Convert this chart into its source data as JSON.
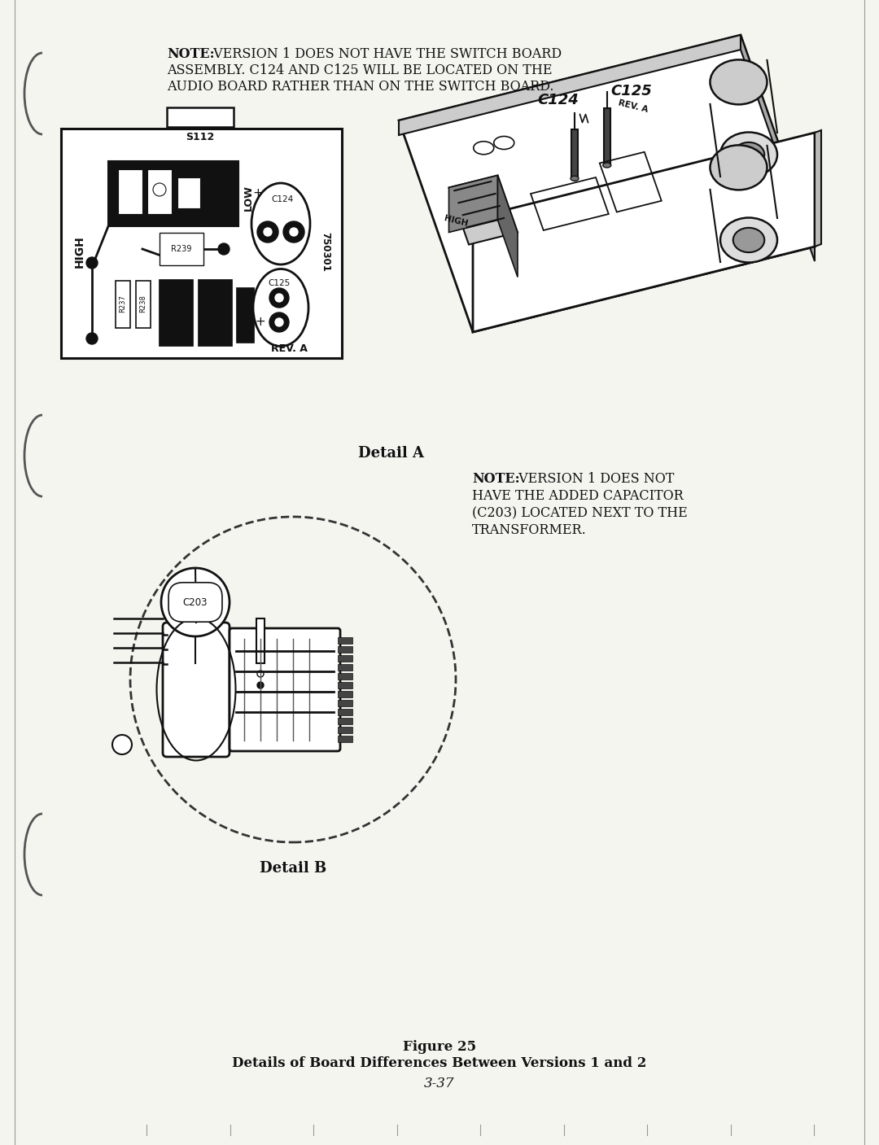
{
  "bg_color": "#f5f5f0",
  "text_color": "#111111",
  "note1_bold": "NOTE:",
  "note1_line1": " VERSION 1 DOES NOT HAVE THE SWITCH BOARD",
  "note1_line2": "ASSEMBLY. C124 AND C125 WILL BE LOCATED ON THE",
  "note1_line3": "AUDIO BOARD RATHER THAN ON THE SWITCH BOARD.",
  "note2_bold": "NOTE:",
  "note2_line1": " VERSION 1 DOES NOT",
  "note2_line2": "HAVE THE ADDED CAPACITOR",
  "note2_line3": "(C203) LOCATED NEXT TO THE",
  "note2_line4": "TRANSFORMER.",
  "detail_a_label": "Detail A",
  "detail_b_label": "Detail B",
  "figure_label": "Figure 25",
  "figure_caption": "Details of Board Differences Between Versions 1 and 2",
  "page_number": "3-37",
  "note_fontsize": 11.5,
  "caption_fontsize": 13,
  "fig_fontsize": 12
}
